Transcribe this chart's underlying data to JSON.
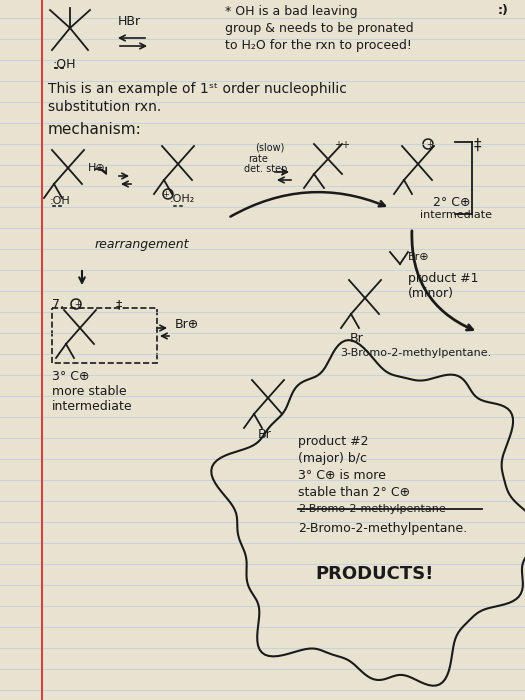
{
  "paper_color": "#e8e2d0",
  "line_color": "#b8cce0",
  "margin_color": "#cc3333",
  "ink": "#1a1a1a",
  "title_note1": "* OH is a bad leaving",
  "title_note2": "group & needs to be pronated",
  "title_note3": "to H₂O for the rxn to proceed!",
  "line1": "This is an example of 1ˢᵗ order nucleophilic",
  "line2": "substitution rxn.",
  "mech": "mechanism:",
  "rearr": "rearrangement",
  "products_txt": "PRODUCTS!",
  "prod1_a": "product #1",
  "prod1_b": "(minor)",
  "prod1_name": "3-Bromo-2-methylpentane.",
  "prod2_a": "product #2",
  "prod2_b": "(major) b/c",
  "prod2_c": "3° C⊕ is more",
  "prod2_d": "stable than 2° C⊕",
  "prod2_e": "2-Bromo-2-methylpentane.",
  "3co": "3° C⊕",
  "more_stable": "more stable",
  "intermediate_txt": "intermediate",
  "2co_int": "2° C⊕",
  "int_lbl": "intermediate"
}
